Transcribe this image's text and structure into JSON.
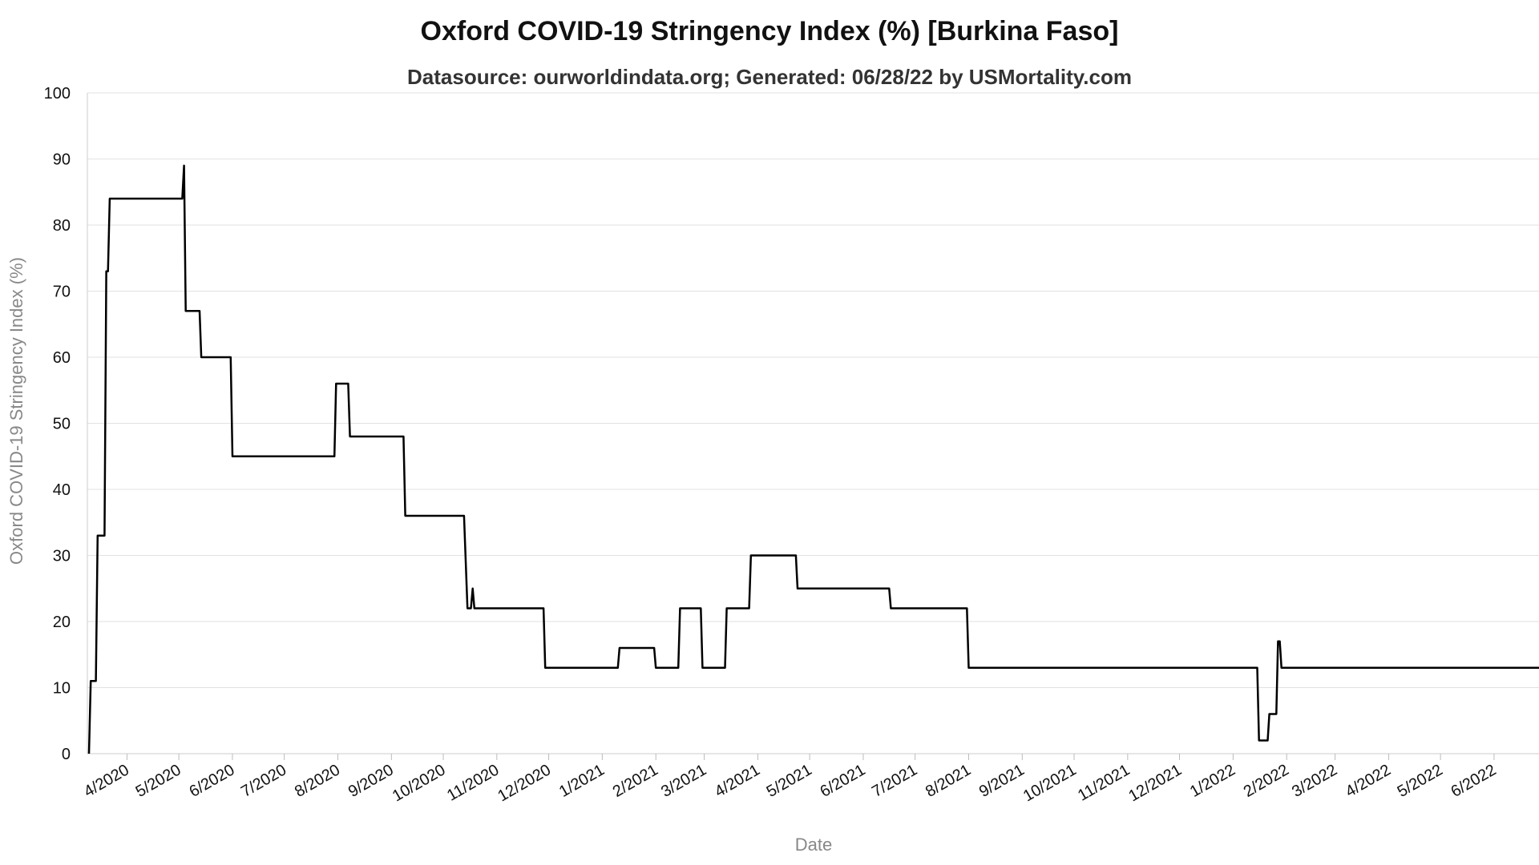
{
  "chart_data": {
    "type": "line",
    "title": "Oxford COVID-19 Stringency Index (%) [Burkina Faso]",
    "subtitle": "Datasource: ourworldindata.org; Generated: 06/28/22 by USMortality.com",
    "xlabel": "Date",
    "ylabel": "Oxford COVID-19 Stringency Index (%)",
    "ylim": [
      0,
      100
    ],
    "yticks": [
      0,
      10,
      20,
      30,
      40,
      50,
      60,
      70,
      80,
      90,
      100
    ],
    "xlim": [
      "2020-03-10",
      "2022-06-27"
    ],
    "xticks": [
      "2020-04-01",
      "2020-05-01",
      "2020-06-01",
      "2020-07-01",
      "2020-08-01",
      "2020-09-01",
      "2020-10-01",
      "2020-11-01",
      "2020-12-01",
      "2021-01-01",
      "2021-02-01",
      "2021-03-01",
      "2021-04-01",
      "2021-05-01",
      "2021-06-01",
      "2021-07-01",
      "2021-08-01",
      "2021-09-01",
      "2021-10-01",
      "2021-11-01",
      "2021-12-01",
      "2022-01-01",
      "2022-02-01",
      "2022-03-01",
      "2022-04-01",
      "2022-05-01",
      "2022-06-01"
    ],
    "xtick_labels": [
      "4/2020",
      "5/2020",
      "6/2020",
      "7/2020",
      "8/2020",
      "9/2020",
      "10/2020",
      "11/2020",
      "12/2020",
      "1/2021",
      "2/2021",
      "3/2021",
      "4/2021",
      "5/2021",
      "6/2021",
      "7/2021",
      "8/2021",
      "9/2021",
      "10/2021",
      "11/2021",
      "12/2021",
      "1/2022",
      "2/2022",
      "3/2022",
      "4/2022",
      "5/2022",
      "6/2022"
    ],
    "grid": true,
    "series": [
      {
        "color": "#000000",
        "points": [
          [
            "2020-03-10",
            0
          ],
          [
            "2020-03-11",
            11
          ],
          [
            "2020-03-14",
            11
          ],
          [
            "2020-03-15",
            33
          ],
          [
            "2020-03-19",
            33
          ],
          [
            "2020-03-20",
            73
          ],
          [
            "2020-03-21",
            73
          ],
          [
            "2020-03-22",
            84
          ],
          [
            "2020-05-03",
            84
          ],
          [
            "2020-05-04",
            89
          ],
          [
            "2020-05-05",
            67
          ],
          [
            "2020-05-13",
            67
          ],
          [
            "2020-05-14",
            60
          ],
          [
            "2020-05-31",
            60
          ],
          [
            "2020-06-01",
            45
          ],
          [
            "2020-07-30",
            45
          ],
          [
            "2020-07-31",
            56
          ],
          [
            "2020-08-07",
            56
          ],
          [
            "2020-08-08",
            48
          ],
          [
            "2020-09-08",
            48
          ],
          [
            "2020-09-09",
            36
          ],
          [
            "2020-10-13",
            36
          ],
          [
            "2020-10-15",
            22
          ],
          [
            "2020-10-17",
            22
          ],
          [
            "2020-10-18",
            25
          ],
          [
            "2020-10-19",
            22
          ],
          [
            "2020-11-28",
            22
          ],
          [
            "2020-11-29",
            13
          ],
          [
            "2021-01-10",
            13
          ],
          [
            "2021-01-11",
            16
          ],
          [
            "2021-01-31",
            16
          ],
          [
            "2021-02-01",
            13
          ],
          [
            "2021-02-14",
            13
          ],
          [
            "2021-02-15",
            22
          ],
          [
            "2021-02-27",
            22
          ],
          [
            "2021-02-28",
            13
          ],
          [
            "2021-03-13",
            13
          ],
          [
            "2021-03-14",
            22
          ],
          [
            "2021-03-27",
            22
          ],
          [
            "2021-03-28",
            30
          ],
          [
            "2021-04-23",
            30
          ],
          [
            "2021-04-24",
            25
          ],
          [
            "2021-06-16",
            25
          ],
          [
            "2021-06-17",
            22
          ],
          [
            "2021-07-31",
            22
          ],
          [
            "2021-08-01",
            13
          ],
          [
            "2022-01-15",
            13
          ],
          [
            "2022-01-16",
            2
          ],
          [
            "2022-01-21",
            2
          ],
          [
            "2022-01-22",
            6
          ],
          [
            "2022-01-26",
            6
          ],
          [
            "2022-01-27",
            17
          ],
          [
            "2022-01-28",
            17
          ],
          [
            "2022-01-29",
            13
          ],
          [
            "2022-06-27",
            13
          ]
        ]
      }
    ]
  }
}
